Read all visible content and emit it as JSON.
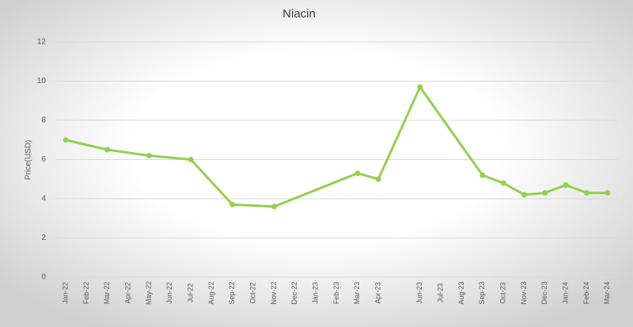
{
  "chart_data": {
    "type": "line",
    "title": "Niacin",
    "y_label": "Price(USD)",
    "categories": [
      "Jan-22",
      "Feb-22",
      "Mar-22",
      "Apr-22",
      "May-22",
      "Jun-22",
      "Jul-22",
      "Aug-22",
      "Sep-22",
      "Oct-22",
      "Nov-22",
      "Dec-22",
      "Jan-23",
      "Feb-23",
      "Mar-23",
      "Apr-23",
      null,
      "Jun-23",
      "Jul-23",
      "Aug-23",
      "Sep-23",
      "Oct-23",
      "Nov-23",
      "Dec-23",
      "Jan-24",
      "Feb-24",
      "Mar-24"
    ],
    "values": [
      7.0,
      null,
      6.5,
      null,
      6.2,
      null,
      6.0,
      null,
      3.7,
      null,
      3.6,
      null,
      null,
      null,
      5.3,
      5.0,
      null,
      9.7,
      null,
      null,
      5.2,
      4.8,
      4.2,
      4.3,
      4.7,
      4.3,
      4.3
    ],
    "color": "#92d050",
    "connect_gaps": true,
    "ylim": [
      0,
      12
    ],
    "yticks": [
      0,
      2,
      4,
      6,
      8,
      10,
      12
    ],
    "grid": true
  }
}
